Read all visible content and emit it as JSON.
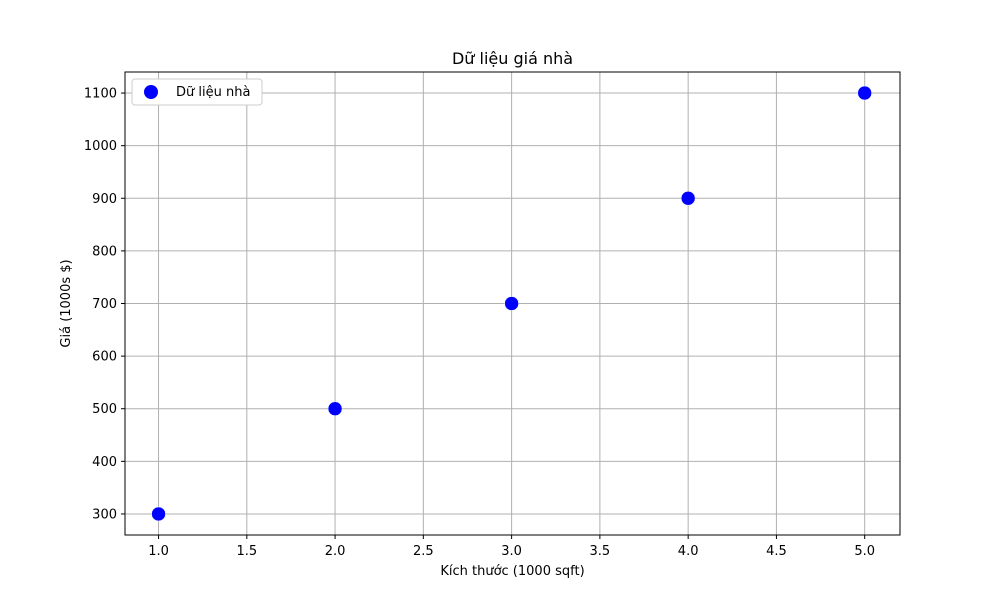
{
  "chart_data": {
    "type": "scatter",
    "title": "Dữ liệu giá nhà",
    "xlabel": "Kích thước (1000 sqft)",
    "ylabel": "Giá (1000s $)",
    "xlim": [
      0.81,
      5.2
    ],
    "ylim": [
      260,
      1140
    ],
    "xticks": [
      1.0,
      1.5,
      2.0,
      2.5,
      3.0,
      3.5,
      4.0,
      4.5,
      5.0
    ],
    "xtick_labels": [
      "1.0",
      "1.5",
      "2.0",
      "2.5",
      "3.0",
      "3.5",
      "4.0",
      "4.5",
      "5.0"
    ],
    "yticks": [
      300,
      400,
      500,
      600,
      700,
      800,
      900,
      1000,
      1100
    ],
    "ytick_labels": [
      "300",
      "400",
      "500",
      "600",
      "700",
      "800",
      "900",
      "1000",
      "1100"
    ],
    "grid": true,
    "legend_position": "upper-left",
    "series": [
      {
        "name": "Dữ liệu nhà",
        "color": "#0000ff",
        "x": [
          1,
          2,
          3,
          4,
          5
        ],
        "y": [
          300,
          500,
          700,
          900,
          1100
        ]
      }
    ]
  }
}
